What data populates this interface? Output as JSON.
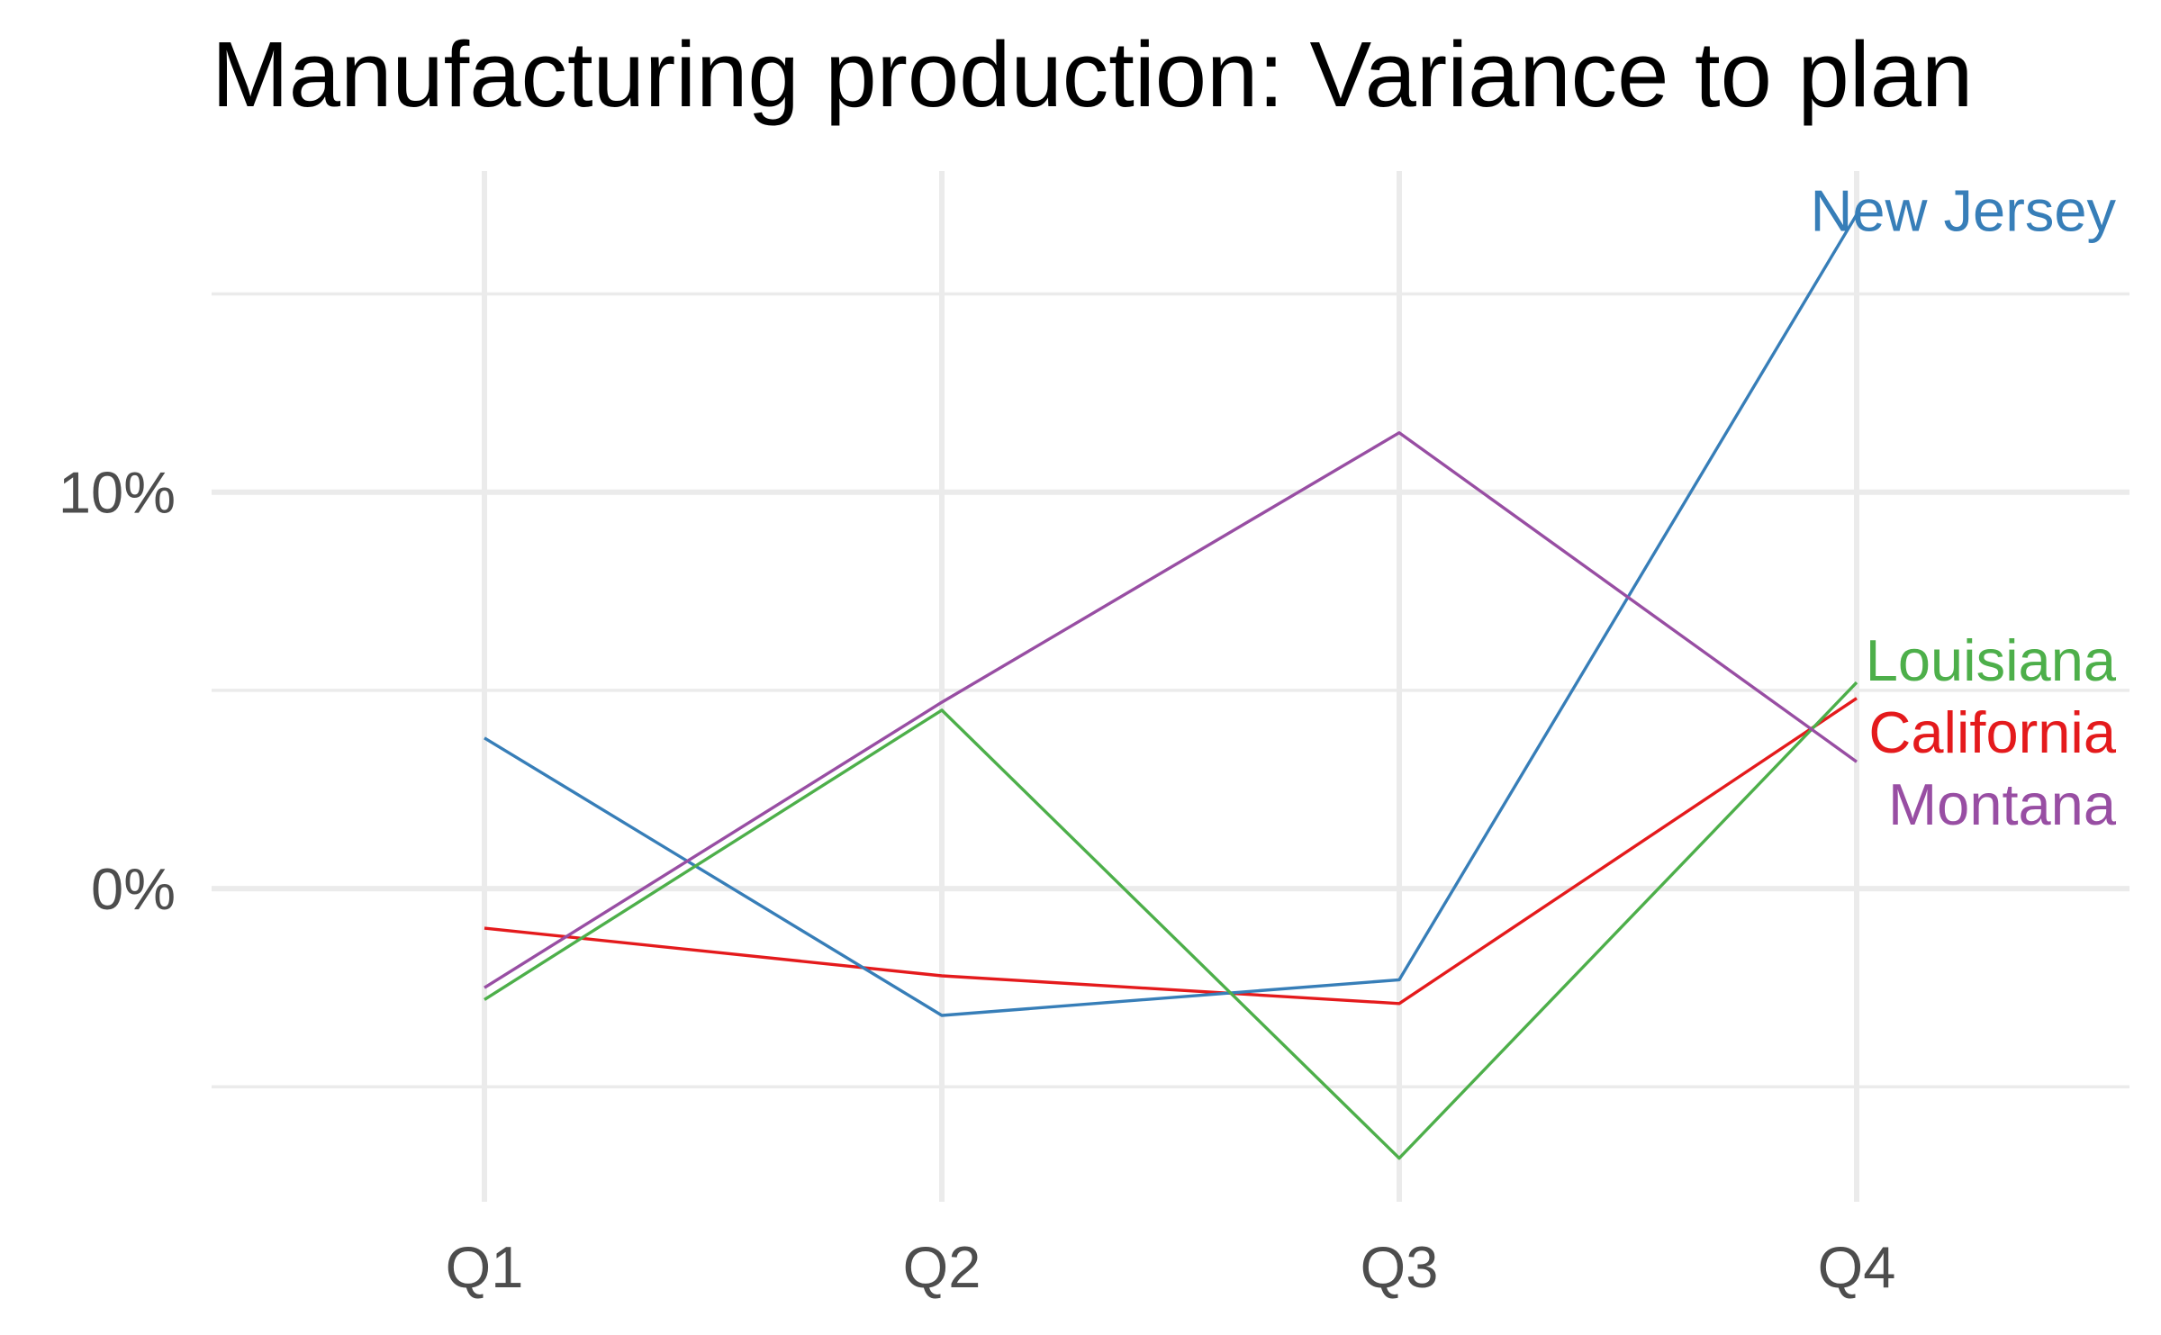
{
  "chart_data": {
    "type": "line",
    "title": "Manufacturing production: Variance to plan",
    "xlabel": "",
    "ylabel": "",
    "categories": [
      "Q1",
      "Q2",
      "Q3",
      "Q4"
    ],
    "y_ticks": [
      0,
      10
    ],
    "y_tick_labels": [
      "0%",
      "10%"
    ],
    "y_minor_ticks": [
      -5,
      5,
      15
    ],
    "ylim": [
      -7.9,
      18.1
    ],
    "grid": true,
    "legend": "direct labels at right end of each line",
    "series": [
      {
        "name": "California",
        "color": "#e41a1c",
        "values": [
          -1.0,
          -2.2,
          -2.9,
          4.8
        ]
      },
      {
        "name": "New Jersey",
        "color": "#377eb8",
        "values": [
          3.8,
          -3.2,
          -2.3,
          17.0
        ]
      },
      {
        "name": "Louisiana",
        "color": "#4daf4a",
        "values": [
          -2.8,
          4.5,
          -6.8,
          5.2
        ]
      },
      {
        "name": "Montana",
        "color": "#984ea3",
        "values": [
          -2.5,
          4.7,
          11.5,
          3.2
        ]
      }
    ]
  }
}
